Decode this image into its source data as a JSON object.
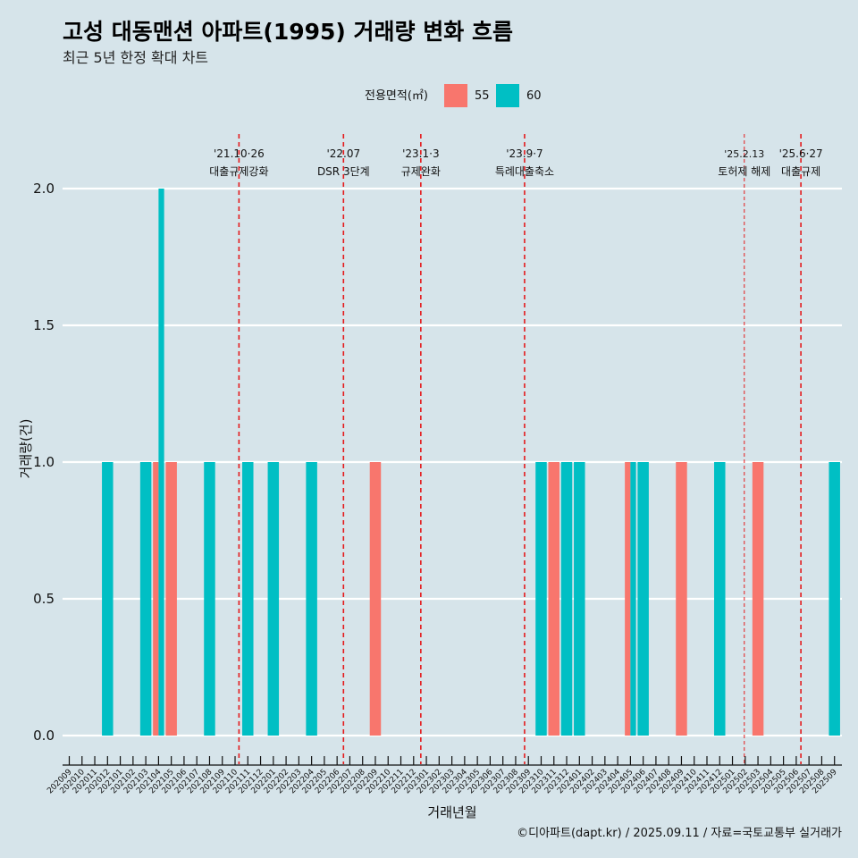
{
  "title": "고성 대동맨션 아파트(1995) 거래량 변화 흐름",
  "subtitle": "최근 5년 한정 확대 차트",
  "caption": "©디아파트(dapt.kr) / 2025.09.11 / 자료=국토교통부 실거래가",
  "colors": {
    "background": "#d6e4ea",
    "s55": "#f8766d",
    "s60": "#00bfc4",
    "event_line": "#e41a1c",
    "grid": "#ffffff"
  },
  "chart_data": {
    "type": "bar",
    "title": "고성 대동맨션 아파트(1995) 거래량 변화 흐름",
    "subtitle": "최근 5년 한정 확대 차트",
    "xlabel": "거래년월",
    "ylabel": "거래량(건)",
    "ylim": [
      0,
      2.1
    ],
    "yticks": [
      0.0,
      2.0,
      1.5,
      1.0,
      0.5
    ],
    "ytick_labels": [
      "0.0",
      "2.0",
      "1.5",
      "1.0",
      "0.5"
    ],
    "legend": {
      "title": "전용면적(㎡)",
      "placement": "top",
      "labels": [
        "55",
        "60"
      ]
    },
    "categories": [
      "202009",
      "202010",
      "202011",
      "202012",
      "202101",
      "202102",
      "202103",
      "202104",
      "202105",
      "202106",
      "202107",
      "202108",
      "202109",
      "202110",
      "202111",
      "202112",
      "202201",
      "202202",
      "202203",
      "202204",
      "202205",
      "202206",
      "202207",
      "202208",
      "202209",
      "202210",
      "202211",
      "202212",
      "202301",
      "202302",
      "202303",
      "202304",
      "202305",
      "202306",
      "202307",
      "202308",
      "202309",
      "202310",
      "202311",
      "202312",
      "202401",
      "202402",
      "202403",
      "202404",
      "202405",
      "202406",
      "202407",
      "202408",
      "202409",
      "202410",
      "202411",
      "202412",
      "202501",
      "202502",
      "202503",
      "202504",
      "202505",
      "202506",
      "202507",
      "202508",
      "202509"
    ],
    "series": [
      {
        "name": "55",
        "color": "#f8766d",
        "points": [
          [
            "202104",
            1
          ],
          [
            "202105",
            1
          ],
          [
            "202209",
            1
          ],
          [
            "202311",
            1
          ],
          [
            "202405",
            1
          ],
          [
            "202409",
            1
          ],
          [
            "202503",
            1
          ]
        ]
      },
      {
        "name": "60",
        "color": "#00bfc4",
        "points": [
          [
            "202012",
            1
          ],
          [
            "202103",
            1
          ],
          [
            "202104",
            2
          ],
          [
            "202108",
            1
          ],
          [
            "202111",
            1
          ],
          [
            "202201",
            1
          ],
          [
            "202204",
            1
          ],
          [
            "202310",
            1
          ],
          [
            "202312",
            1
          ],
          [
            "202401",
            1
          ],
          [
            "202405",
            1
          ],
          [
            "202406",
            1
          ],
          [
            "202412",
            1
          ],
          [
            "202509",
            1
          ]
        ]
      }
    ],
    "events": [
      {
        "date": "2021-10-26",
        "label1": "'21.10·26",
        "label2": "대출규제강화"
      },
      {
        "date": "2022-07-01",
        "label1": "'22.07",
        "label2": "DSR 3단계"
      },
      {
        "date": "2023-01-03",
        "label1": "'23.1·3",
        "label2": "규제완화"
      },
      {
        "date": "2023-09-07",
        "label1": "'23.9·7",
        "label2": "특례대출축소"
      },
      {
        "date": "2025-02-13",
        "label1": "'25.2.13",
        "label2": "토허제 해제"
      },
      {
        "date": "2025-06-27",
        "label1": "'25.6·27",
        "label2": "대출규제"
      }
    ]
  }
}
